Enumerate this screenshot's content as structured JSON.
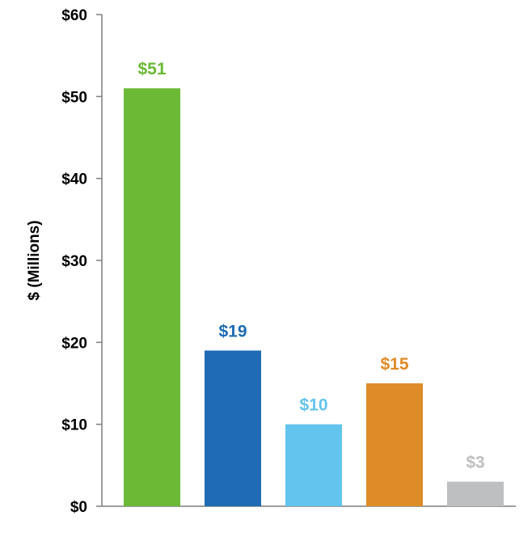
{
  "chart_data": {
    "type": "bar",
    "title": "",
    "xlabel": "",
    "ylabel": "$ (Millions)",
    "ylim": [
      0,
      60
    ],
    "yticks": [
      0,
      10,
      20,
      30,
      40,
      50,
      60
    ],
    "ytick_labels": [
      "$0",
      "$10",
      "$20",
      "$30",
      "$40",
      "$50",
      "$60"
    ],
    "categories": [
      "",
      "",
      "",
      "",
      ""
    ],
    "values": [
      51,
      19,
      10,
      15,
      3
    ],
    "data_labels": [
      "$51",
      "$19",
      "$10",
      "$15",
      "$3"
    ],
    "colors": [
      "#6BB935",
      "#1F6CB4",
      "#63C4EE",
      "#DE8C27",
      "#BEBFC1"
    ],
    "legend": "none",
    "grid": false
  }
}
